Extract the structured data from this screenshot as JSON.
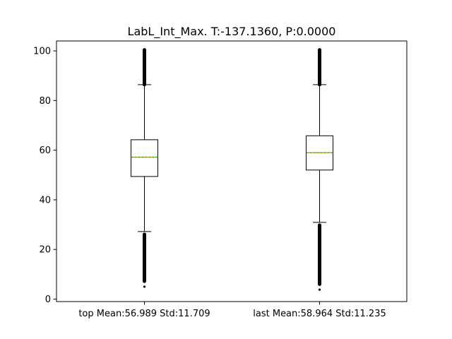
{
  "chart_data": {
    "type": "boxplot",
    "title": "LabL_Int_Max. T:-137.1360, P:0.0000",
    "xlabel": "",
    "ylabel": "",
    "ylim": [
      -1,
      104
    ],
    "yticks": [
      0,
      20,
      40,
      60,
      80,
      100
    ],
    "grid": false,
    "categories": [
      "top Mean:56.989 Std:11.709",
      "last Mean:58.964 Std:11.235"
    ],
    "boxes": [
      {
        "label": "top Mean:56.989 Std:11.709",
        "whisker_low": 27.2,
        "q1": 49.4,
        "median": 57.2,
        "mean": 56.989,
        "q3": 64.2,
        "whisker_high": 86.4,
        "outliers_low": [
          27.2,
          5.0
        ],
        "outliers_high": [
          86.4,
          100.4
        ]
      },
      {
        "label": "last Mean:58.964 Std:11.235",
        "whisker_low": 30.9,
        "q1": 52.0,
        "median": 59.0,
        "mean": 58.964,
        "q3": 65.8,
        "whisker_high": 86.4,
        "outliers_low": [
          30.9,
          3.8
        ],
        "outliers_high": [
          86.4,
          100.4
        ]
      }
    ],
    "colors": {
      "box": "#000000",
      "median": "#ff7f0e",
      "mean": "#2ca02c"
    }
  }
}
